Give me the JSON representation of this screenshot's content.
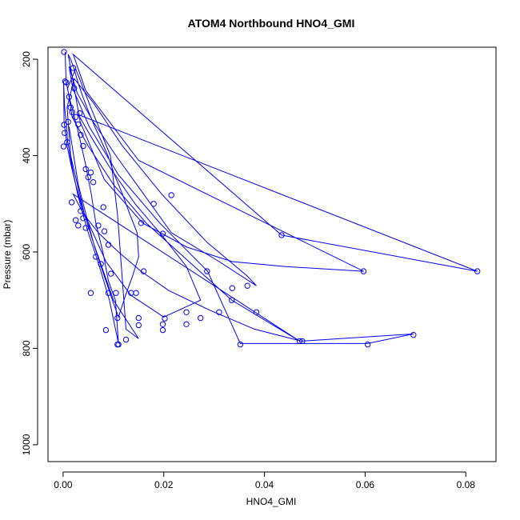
{
  "chart_data": {
    "type": "line",
    "title": "ATOM4 Northbound HNO4_GMI",
    "xlabel": "HNO4_GMI",
    "ylabel": "Pressure (mbar)",
    "xlim": [
      -0.003,
      0.086
    ],
    "ylim": [
      1035,
      175
    ],
    "y_reversed": true,
    "grid": false,
    "legend": "none",
    "color": "#0000ff",
    "x_ticks": [
      0.0,
      0.02,
      0.04,
      0.06,
      0.08
    ],
    "x_tick_labels": [
      "0.00",
      "0.02",
      "0.04",
      "0.06",
      "0.08"
    ],
    "y_ticks": [
      200,
      400,
      600,
      800,
      1000
    ],
    "y_tick_labels": [
      "200",
      "400",
      "600",
      "800",
      "1000"
    ],
    "series": [
      {
        "x": [
          0.0004,
          0.0006,
          0.0012,
          0.002,
          0.0031,
          0.0045,
          0.0056,
          0.0065,
          0.0079,
          0.009,
          0.0104,
          0.0107,
          0.011,
          0.0092,
          0.0075,
          0.0063,
          0.005,
          0.0039,
          0.0029,
          0.0021,
          0.0014,
          0.0009,
          0.0006,
          0.0003,
          0.0001,
          0.0002,
          0.0008,
          0.0016,
          0.0025,
          0.0036,
          0.0048,
          0.006,
          0.0072,
          0.0085,
          0.0098,
          0.011,
          0.0124,
          0.0138,
          0.015,
          0.0147,
          0.0132,
          0.0118,
          0.0102,
          0.0089,
          0.0076,
          0.0063,
          0.0051,
          0.004,
          0.003,
          0.0022,
          0.0015,
          0.001,
          0.0034,
          0.0082,
          0.0158,
          0.0246,
          0.0336,
          0.044,
          0.0597,
          0.015,
          0.0045,
          0.002,
          0.0434,
          0.0823,
          0.003,
          0.0055,
          0.009,
          0.0143,
          0.02,
          0.0245,
          0.0273,
          0.02,
          0.0135,
          0.0085,
          0.0042,
          0.0015,
          0.0008,
          0.0022,
          0.006,
          0.0118,
          0.0196,
          0.0286,
          0.0366,
          0.0384,
          0.031,
          0.0215,
          0.016,
          0.0105,
          0.006,
          0.0028,
          0.0012,
          0.0019,
          0.0052,
          0.011,
          0.0192,
          0.0287,
          0.0352,
          0.0605,
          0.0696,
          0.0473,
          0.038,
          0.029,
          0.021,
          0.0155,
          0.011,
          0.007,
          0.004,
          0.002,
          0.047,
          0.0335,
          0.025,
          0.0165,
          0.01,
          0.005,
          0.0018,
          0.0009,
          0.0025,
          0.0055,
          0.0094,
          0.0108,
          0.0125,
          0.015,
          0.01,
          0.006,
          0.003,
          0.0012
        ],
        "y": [
          185,
          247,
          278,
          310,
          355,
          420,
          480,
          540,
          600,
          660,
          700,
          745,
          790,
          700,
          640,
          600,
          560,
          520,
          480,
          440,
          400,
          370,
          330,
          300,
          246,
          330,
          380,
          420,
          460,
          500,
          540,
          580,
          620,
          660,
          700,
          735,
          690,
          650,
          610,
          560,
          520,
          480,
          440,
          400,
          370,
          340,
          310,
          280,
          250,
          220,
          200,
          190,
          330,
          450,
          540,
          590,
          620,
          630,
          640,
          410,
          265,
          190,
          565,
          640,
          315,
          360,
          420,
          500,
          570,
          630,
          700,
          735,
          690,
          620,
          520,
          400,
          300,
          240,
          290,
          380,
          480,
          580,
          650,
          670,
          620,
          560,
          480,
          400,
          330,
          270,
          215,
          260,
          340,
          440,
          540,
          640,
          790,
          790,
          770,
          785,
          760,
          720,
          680,
          640,
          600,
          560,
          520,
          480,
          785,
          700,
          620,
          540,
          460,
          380,
          320,
          260,
          220,
          300,
          400,
          520,
          760,
          780,
          700,
          580,
          460,
          340
        ]
      }
    ],
    "markers": [
      {
        "x": 0.0002,
        "y": 185
      },
      {
        "x": 0.0004,
        "y": 246
      },
      {
        "x": 0.0006,
        "y": 248
      },
      {
        "x": 0.0012,
        "y": 278
      },
      {
        "x": 0.001,
        "y": 330
      },
      {
        "x": 0.0002,
        "y": 336
      },
      {
        "x": 0.0003,
        "y": 353
      },
      {
        "x": 0.0008,
        "y": 372
      },
      {
        "x": 0.0001,
        "y": 381
      },
      {
        "x": 0.0015,
        "y": 300
      },
      {
        "x": 0.0018,
        "y": 310
      },
      {
        "x": 0.002,
        "y": 218
      },
      {
        "x": 0.0022,
        "y": 260
      },
      {
        "x": 0.0025,
        "y": 320
      },
      {
        "x": 0.003,
        "y": 335
      },
      {
        "x": 0.0033,
        "y": 312
      },
      {
        "x": 0.0035,
        "y": 357
      },
      {
        "x": 0.004,
        "y": 380
      },
      {
        "x": 0.0045,
        "y": 428
      },
      {
        "x": 0.005,
        "y": 445
      },
      {
        "x": 0.0055,
        "y": 435
      },
      {
        "x": 0.006,
        "y": 455
      },
      {
        "x": 0.0017,
        "y": 497
      },
      {
        "x": 0.0025,
        "y": 534
      },
      {
        "x": 0.003,
        "y": 545
      },
      {
        "x": 0.0035,
        "y": 515
      },
      {
        "x": 0.004,
        "y": 530
      },
      {
        "x": 0.0045,
        "y": 550
      },
      {
        "x": 0.007,
        "y": 545
      },
      {
        "x": 0.008,
        "y": 507
      },
      {
        "x": 0.0082,
        "y": 557
      },
      {
        "x": 0.009,
        "y": 585
      },
      {
        "x": 0.0065,
        "y": 610
      },
      {
        "x": 0.0075,
        "y": 625
      },
      {
        "x": 0.0095,
        "y": 645
      },
      {
        "x": 0.0055,
        "y": 685
      },
      {
        "x": 0.009,
        "y": 685
      },
      {
        "x": 0.0105,
        "y": 685
      },
      {
        "x": 0.0135,
        "y": 685
      },
      {
        "x": 0.0145,
        "y": 685
      },
      {
        "x": 0.016,
        "y": 640
      },
      {
        "x": 0.0155,
        "y": 540
      },
      {
        "x": 0.018,
        "y": 500
      },
      {
        "x": 0.0198,
        "y": 562
      },
      {
        "x": 0.0215,
        "y": 482
      },
      {
        "x": 0.0085,
        "y": 762
      },
      {
        "x": 0.0108,
        "y": 737
      },
      {
        "x": 0.0108,
        "y": 792
      },
      {
        "x": 0.011,
        "y": 792
      },
      {
        "x": 0.0125,
        "y": 782
      },
      {
        "x": 0.015,
        "y": 737
      },
      {
        "x": 0.015,
        "y": 752
      },
      {
        "x": 0.0198,
        "y": 750
      },
      {
        "x": 0.0198,
        "y": 762
      },
      {
        "x": 0.0202,
        "y": 738
      },
      {
        "x": 0.0245,
        "y": 725
      },
      {
        "x": 0.0245,
        "y": 750
      },
      {
        "x": 0.0273,
        "y": 737
      },
      {
        "x": 0.0286,
        "y": 640
      },
      {
        "x": 0.031,
        "y": 725
      },
      {
        "x": 0.0335,
        "y": 700
      },
      {
        "x": 0.0336,
        "y": 675
      },
      {
        "x": 0.0366,
        "y": 670
      },
      {
        "x": 0.0384,
        "y": 725
      },
      {
        "x": 0.0352,
        "y": 792
      },
      {
        "x": 0.0434,
        "y": 565
      },
      {
        "x": 0.047,
        "y": 785
      },
      {
        "x": 0.0475,
        "y": 785
      },
      {
        "x": 0.0597,
        "y": 640
      },
      {
        "x": 0.0605,
        "y": 792
      },
      {
        "x": 0.0696,
        "y": 772
      },
      {
        "x": 0.0823,
        "y": 640
      }
    ]
  }
}
